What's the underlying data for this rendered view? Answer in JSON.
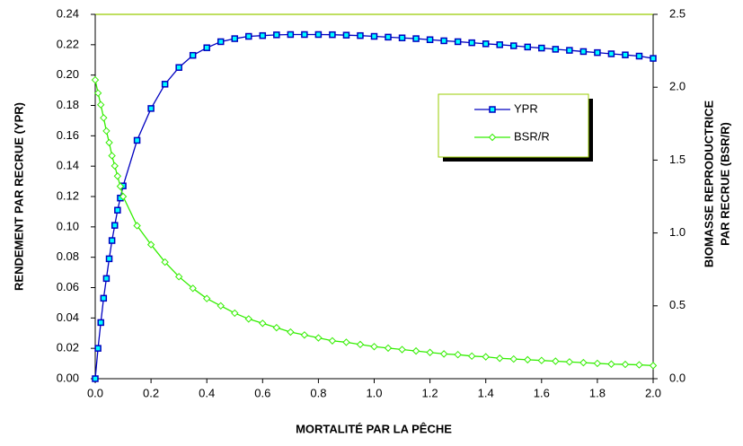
{
  "chart_data": {
    "type": "line",
    "x_label": "MORTALITÉ PAR LA PÊCHE",
    "y_label": "RENDEMENT  PAR  RECRUE  (YPR)",
    "y2_label": [
      "BIOMASSE  REPRODUCTRICE",
      "PAR RECRUE  (BSR/R)"
    ],
    "x": [
      0,
      0.01,
      0.02,
      0.03,
      0.04,
      0.05,
      0.06,
      0.07,
      0.08,
      0.09,
      0.1,
      0.15,
      0.2,
      0.25,
      0.3,
      0.35,
      0.4,
      0.45,
      0.5,
      0.55,
      0.6,
      0.65,
      0.7,
      0.75,
      0.8,
      0.85,
      0.9,
      0.95,
      1.0,
      1.05,
      1.1,
      1.15,
      1.2,
      1.25,
      1.3,
      1.35,
      1.4,
      1.45,
      1.5,
      1.55,
      1.6,
      1.65,
      1.7,
      1.75,
      1.8,
      1.85,
      1.9,
      1.95,
      2.0
    ],
    "series": [
      {
        "name": "YPR",
        "color": "#0000c0",
        "marker_color": "#00ffff",
        "marker": "square",
        "values": [
          0,
          0.02,
          0.037,
          0.053,
          0.066,
          0.079,
          0.091,
          0.101,
          0.111,
          0.119,
          0.127,
          0.157,
          0.178,
          0.194,
          0.205,
          0.213,
          0.218,
          0.222,
          0.224,
          0.2255,
          0.226,
          0.2265,
          0.2267,
          0.2267,
          0.2267,
          0.2266,
          0.2263,
          0.226,
          0.2255,
          0.225,
          0.2245,
          0.224,
          0.2233,
          0.2226,
          0.222,
          0.2213,
          0.2206,
          0.22,
          0.2193,
          0.2185,
          0.2178,
          0.217,
          0.2163,
          0.2155,
          0.2148,
          0.214,
          0.2133,
          0.2125,
          0.211
        ]
      },
      {
        "name": "BSR/R",
        "color": "#33ee00",
        "marker_color": "#ffffff",
        "marker": "diamond",
        "axis": "y2",
        "values": [
          2.05,
          1.96,
          1.88,
          1.79,
          1.7,
          1.62,
          1.53,
          1.46,
          1.39,
          1.32,
          1.25,
          1.05,
          0.92,
          0.8,
          0.7,
          0.62,
          0.55,
          0.5,
          0.45,
          0.41,
          0.38,
          0.35,
          0.32,
          0.3,
          0.28,
          0.26,
          0.25,
          0.235,
          0.22,
          0.21,
          0.2,
          0.19,
          0.18,
          0.17,
          0.165,
          0.155,
          0.15,
          0.14,
          0.135,
          0.13,
          0.125,
          0.12,
          0.115,
          0.11,
          0.105,
          0.1,
          0.098,
          0.095,
          0.09
        ]
      }
    ],
    "xlim": [
      0,
      2.0
    ],
    "xticks": [
      {
        "value": 0,
        "label": "0.0"
      },
      0.2,
      0.4,
      0.6,
      0.8,
      {
        "value": 1,
        "label": "1.0"
      },
      1.2,
      1.4,
      1.6,
      1.8,
      {
        "value": 2,
        "label": "2.0"
      }
    ],
    "ylim": [
      0,
      0.24
    ],
    "yticks": [
      {
        "value": 0,
        "label": "0.00"
      },
      0.02,
      0.04,
      0.06,
      0.08,
      {
        "value": 0.1,
        "label": "0.10"
      },
      0.12,
      0.14,
      0.16,
      0.18,
      {
        "value": 0.2,
        "label": "0.20"
      },
      0.22,
      0.24
    ],
    "y2lim": [
      0,
      2.5
    ],
    "y2ticks": [
      {
        "value": 0,
        "label": "0.0"
      },
      0.5,
      {
        "value": 1,
        "label": "1.0"
      },
      1.5,
      {
        "value": 2,
        "label": "2.0"
      },
      2.5
    ],
    "grid": false
  }
}
